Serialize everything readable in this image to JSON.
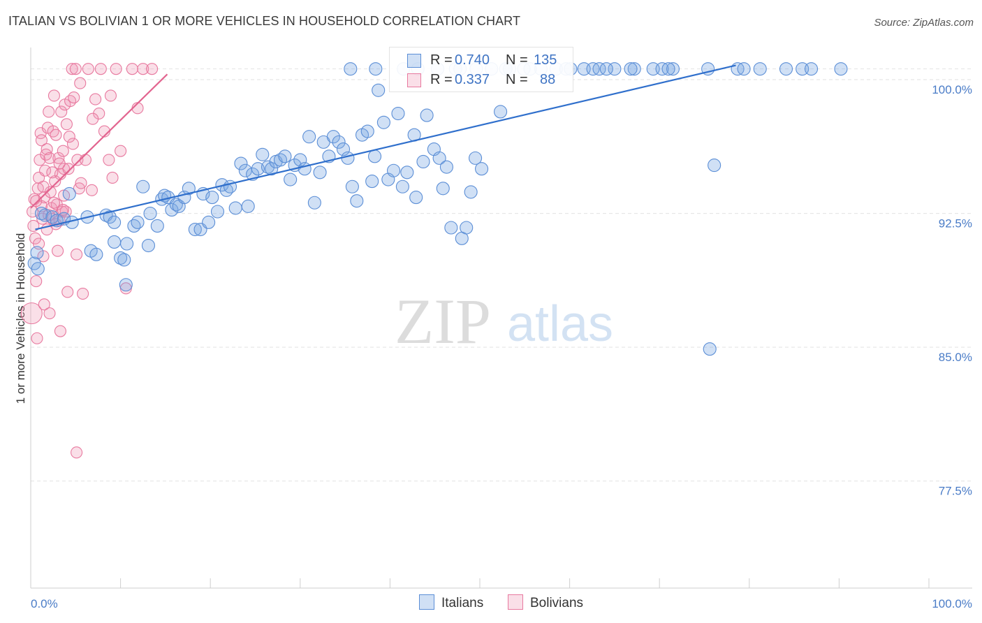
{
  "title": "ITALIAN VS BOLIVIAN 1 OR MORE VEHICLES IN HOUSEHOLD CORRELATION CHART",
  "source": "Source: ZipAtlas.com",
  "watermark": {
    "zip": "ZIP",
    "atlas": "atlas"
  },
  "colors": {
    "italians": "#5b8ed6",
    "italians_fill": "rgba(120,165,225,0.35)",
    "bolivians": "#e8799f",
    "bolivians_fill": "rgba(240,150,180,0.30)",
    "tick_text": "#4a7cc7",
    "grid": "#e2e2e2"
  },
  "legend": {
    "italians": {
      "r_label": "R =",
      "r_value": "0.740",
      "n_label": "N =",
      "n_value": "135"
    },
    "bolivians": {
      "r_label": "R =",
      "r_value": "0.337",
      "n_label": "N =",
      "n_value": "88"
    }
  },
  "bottom_legend": {
    "italians": "Italians",
    "bolivians": "Bolivians"
  },
  "chart_data": {
    "type": "scatter",
    "title": "ITALIAN VS BOLIVIAN 1 OR MORE VEHICLES IN HOUSEHOLD CORRELATION CHART",
    "xlabel": "",
    "ylabel": "1 or more Vehicles in Household",
    "xlim": [
      0,
      100
    ],
    "ylim": [
      71.5,
      101.8
    ],
    "x_tick_labels": [
      "0.0%",
      "100.0%"
    ],
    "y_ticks": [
      77.5,
      85.0,
      92.5,
      100.0
    ],
    "y_tick_labels": [
      "77.5%",
      "85.0%",
      "92.5%",
      "100.0%"
    ],
    "grid": true,
    "legend_position": "top-center",
    "series": [
      {
        "name": "Italians",
        "R": 0.74,
        "N": 135,
        "trend": {
          "x": [
            0.5,
            78.5
          ],
          "y": [
            91.6,
            100.8
          ]
        },
        "points": [
          [
            0.4,
            89.7
          ],
          [
            0.7,
            90.3
          ],
          [
            0.8,
            89.4
          ],
          [
            1.2,
            92.5
          ],
          [
            1.6,
            92.4
          ],
          [
            2.4,
            92.3
          ],
          [
            2.9,
            92.1
          ],
          [
            3.7,
            92.2
          ],
          [
            4.3,
            93.6
          ],
          [
            4.6,
            92.0
          ],
          [
            6.3,
            92.3
          ],
          [
            6.7,
            90.4
          ],
          [
            7.3,
            90.2
          ],
          [
            8.4,
            92.4
          ],
          [
            8.8,
            92.3
          ],
          [
            9.3,
            92.0
          ],
          [
            9.3,
            90.9
          ],
          [
            10.0,
            90.0
          ],
          [
            10.4,
            89.9
          ],
          [
            10.6,
            88.5
          ],
          [
            10.7,
            90.8
          ],
          [
            11.5,
            91.8
          ],
          [
            11.9,
            92.0
          ],
          [
            12.5,
            94.0
          ],
          [
            13.1,
            90.7
          ],
          [
            13.3,
            92.5
          ],
          [
            14.1,
            91.8
          ],
          [
            14.6,
            93.3
          ],
          [
            14.9,
            93.5
          ],
          [
            15.3,
            93.4
          ],
          [
            15.7,
            92.7
          ],
          [
            16.2,
            93.0
          ],
          [
            16.5,
            92.9
          ],
          [
            17.1,
            93.4
          ],
          [
            17.6,
            93.9
          ],
          [
            18.3,
            91.6
          ],
          [
            18.9,
            91.6
          ],
          [
            19.2,
            93.6
          ],
          [
            19.8,
            92.0
          ],
          [
            20.2,
            93.4
          ],
          [
            20.8,
            92.6
          ],
          [
            21.3,
            94.1
          ],
          [
            21.8,
            93.8
          ],
          [
            22.2,
            94.0
          ],
          [
            22.8,
            92.8
          ],
          [
            23.4,
            95.3
          ],
          [
            23.9,
            94.9
          ],
          [
            24.2,
            92.9
          ],
          [
            24.7,
            94.7
          ],
          [
            25.3,
            95.0
          ],
          [
            25.8,
            95.8
          ],
          [
            26.4,
            95.1
          ],
          [
            26.8,
            95.0
          ],
          [
            27.3,
            95.4
          ],
          [
            27.8,
            95.5
          ],
          [
            28.3,
            95.7
          ],
          [
            28.9,
            94.4
          ],
          [
            29.4,
            95.2
          ],
          [
            30.0,
            95.5
          ],
          [
            30.5,
            95.0
          ],
          [
            31.0,
            96.8
          ],
          [
            31.6,
            93.1
          ],
          [
            32.2,
            94.8
          ],
          [
            32.6,
            96.5
          ],
          [
            33.2,
            95.7
          ],
          [
            33.7,
            96.8
          ],
          [
            34.3,
            96.5
          ],
          [
            34.8,
            96.1
          ],
          [
            35.3,
            95.6
          ],
          [
            35.8,
            94.0
          ],
          [
            36.3,
            93.2
          ],
          [
            36.9,
            96.9
          ],
          [
            37.5,
            97.1
          ],
          [
            38.0,
            94.3
          ],
          [
            38.3,
            95.7
          ],
          [
            38.7,
            99.4
          ],
          [
            39.3,
            97.6
          ],
          [
            39.8,
            94.4
          ],
          [
            40.4,
            94.9
          ],
          [
            40.9,
            98.1
          ],
          [
            41.4,
            94.0
          ],
          [
            41.9,
            94.8
          ],
          [
            42.7,
            96.9
          ],
          [
            42.9,
            93.4
          ],
          [
            43.7,
            95.4
          ],
          [
            44.1,
            98.0
          ],
          [
            44.9,
            96.1
          ],
          [
            45.5,
            95.6
          ],
          [
            45.9,
            93.9
          ],
          [
            46.3,
            95.1
          ],
          [
            46.8,
            91.7
          ],
          [
            48.0,
            91.1
          ],
          [
            48.5,
            91.7
          ],
          [
            49.0,
            93.7
          ],
          [
            49.5,
            95.6
          ],
          [
            50.2,
            95.0
          ],
          [
            52.3,
            98.2
          ],
          [
            56.8,
            100.6
          ],
          [
            58.5,
            100.6
          ],
          [
            59.6,
            100.6
          ],
          [
            61.6,
            100.6
          ],
          [
            62.6,
            100.6
          ],
          [
            63.3,
            100.6
          ],
          [
            65.0,
            100.6
          ],
          [
            67.2,
            100.6
          ],
          [
            69.3,
            100.6
          ],
          [
            70.3,
            100.6
          ],
          [
            71.5,
            100.6
          ],
          [
            75.4,
            100.6
          ],
          [
            76.1,
            95.2
          ],
          [
            78.7,
            100.6
          ],
          [
            79.4,
            100.6
          ],
          [
            81.2,
            100.6
          ],
          [
            84.1,
            100.6
          ],
          [
            85.9,
            100.6
          ],
          [
            86.9,
            100.6
          ],
          [
            90.2,
            100.6
          ],
          [
            75.6,
            84.9
          ],
          [
            41.5,
            100.6
          ],
          [
            45.3,
            100.6
          ],
          [
            47.3,
            100.6
          ],
          [
            49.6,
            100.6
          ],
          [
            51.3,
            100.6
          ],
          [
            53.3,
            100.6
          ],
          [
            54.9,
            100.6
          ],
          [
            35.6,
            100.6
          ],
          [
            38.4,
            100.6
          ],
          [
            43.1,
            100.6
          ],
          [
            47.8,
            100.6
          ],
          [
            52.9,
            100.6
          ],
          [
            55.6,
            100.6
          ],
          [
            60.1,
            100.6
          ],
          [
            64.1,
            100.6
          ],
          [
            66.8,
            100.6
          ],
          [
            71.0,
            100.6
          ]
        ]
      },
      {
        "name": "Bolivians",
        "R": 0.337,
        "N": 88,
        "trend": {
          "x": [
            0.0,
            15.2
          ],
          "y": [
            92.8,
            100.3
          ]
        },
        "points": [
          [
            0.1,
            86.9
          ],
          [
            0.2,
            92.6
          ],
          [
            0.3,
            91.8
          ],
          [
            0.4,
            93.3
          ],
          [
            0.5,
            91.1
          ],
          [
            0.6,
            88.7
          ],
          [
            0.7,
            85.5
          ],
          [
            0.8,
            93.9
          ],
          [
            0.9,
            94.5
          ],
          [
            1.0,
            95.5
          ],
          [
            1.1,
            97.0
          ],
          [
            1.2,
            96.6
          ],
          [
            1.3,
            92.2
          ],
          [
            1.4,
            90.1
          ],
          [
            1.5,
            93.4
          ],
          [
            1.6,
            94.9
          ],
          [
            1.7,
            95.8
          ],
          [
            1.8,
            96.1
          ],
          [
            1.9,
            97.3
          ],
          [
            2.0,
            98.2
          ],
          [
            2.1,
            95.6
          ],
          [
            2.2,
            93.7
          ],
          [
            2.3,
            92.8
          ],
          [
            2.4,
            92.2
          ],
          [
            2.5,
            97.1
          ],
          [
            2.6,
            99.1
          ],
          [
            2.7,
            94.3
          ],
          [
            2.8,
            96.9
          ],
          [
            2.9,
            93.0
          ],
          [
            3.1,
            95.6
          ],
          [
            3.2,
            92.1
          ],
          [
            3.3,
            94.7
          ],
          [
            3.4,
            98.2
          ],
          [
            3.5,
            92.6
          ],
          [
            3.6,
            96.0
          ],
          [
            3.7,
            95.0
          ],
          [
            3.8,
            98.6
          ],
          [
            3.9,
            92.6
          ],
          [
            4.0,
            97.5
          ],
          [
            4.2,
            95.0
          ],
          [
            4.4,
            98.8
          ],
          [
            4.6,
            100.6
          ],
          [
            4.8,
            99.0
          ],
          [
            5.0,
            100.6
          ],
          [
            5.2,
            95.5
          ],
          [
            5.4,
            93.9
          ],
          [
            5.6,
            94.2
          ],
          [
            5.8,
            88.0
          ],
          [
            6.1,
            95.5
          ],
          [
            6.4,
            100.6
          ],
          [
            6.8,
            93.8
          ],
          [
            7.2,
            98.9
          ],
          [
            7.6,
            98.1
          ],
          [
            8.2,
            97.1
          ],
          [
            8.7,
            95.5
          ],
          [
            9.1,
            94.5
          ],
          [
            9.5,
            100.6
          ],
          [
            10.0,
            96.0
          ],
          [
            10.6,
            88.3
          ],
          [
            11.3,
            100.6
          ],
          [
            11.9,
            98.4
          ],
          [
            12.5,
            100.6
          ],
          [
            1.5,
            87.4
          ],
          [
            2.1,
            86.9
          ],
          [
            3.3,
            85.9
          ],
          [
            4.1,
            88.1
          ],
          [
            5.1,
            90.2
          ],
          [
            0.9,
            90.8
          ],
          [
            1.8,
            91.6
          ],
          [
            2.6,
            93.1
          ],
          [
            3.0,
            90.4
          ],
          [
            3.7,
            93.5
          ],
          [
            4.7,
            96.4
          ],
          [
            5.5,
            99.8
          ],
          [
            6.9,
            97.8
          ],
          [
            7.8,
            100.6
          ],
          [
            8.9,
            99.1
          ],
          [
            13.5,
            100.6
          ],
          [
            5.1,
            79.1
          ],
          [
            1.2,
            92.9
          ],
          [
            2.0,
            92.4
          ],
          [
            2.8,
            91.9
          ],
          [
            3.6,
            92.7
          ],
          [
            0.6,
            93.2
          ],
          [
            1.4,
            94.0
          ],
          [
            2.4,
            94.8
          ],
          [
            3.2,
            95.3
          ],
          [
            4.3,
            96.8
          ]
        ]
      }
    ]
  }
}
